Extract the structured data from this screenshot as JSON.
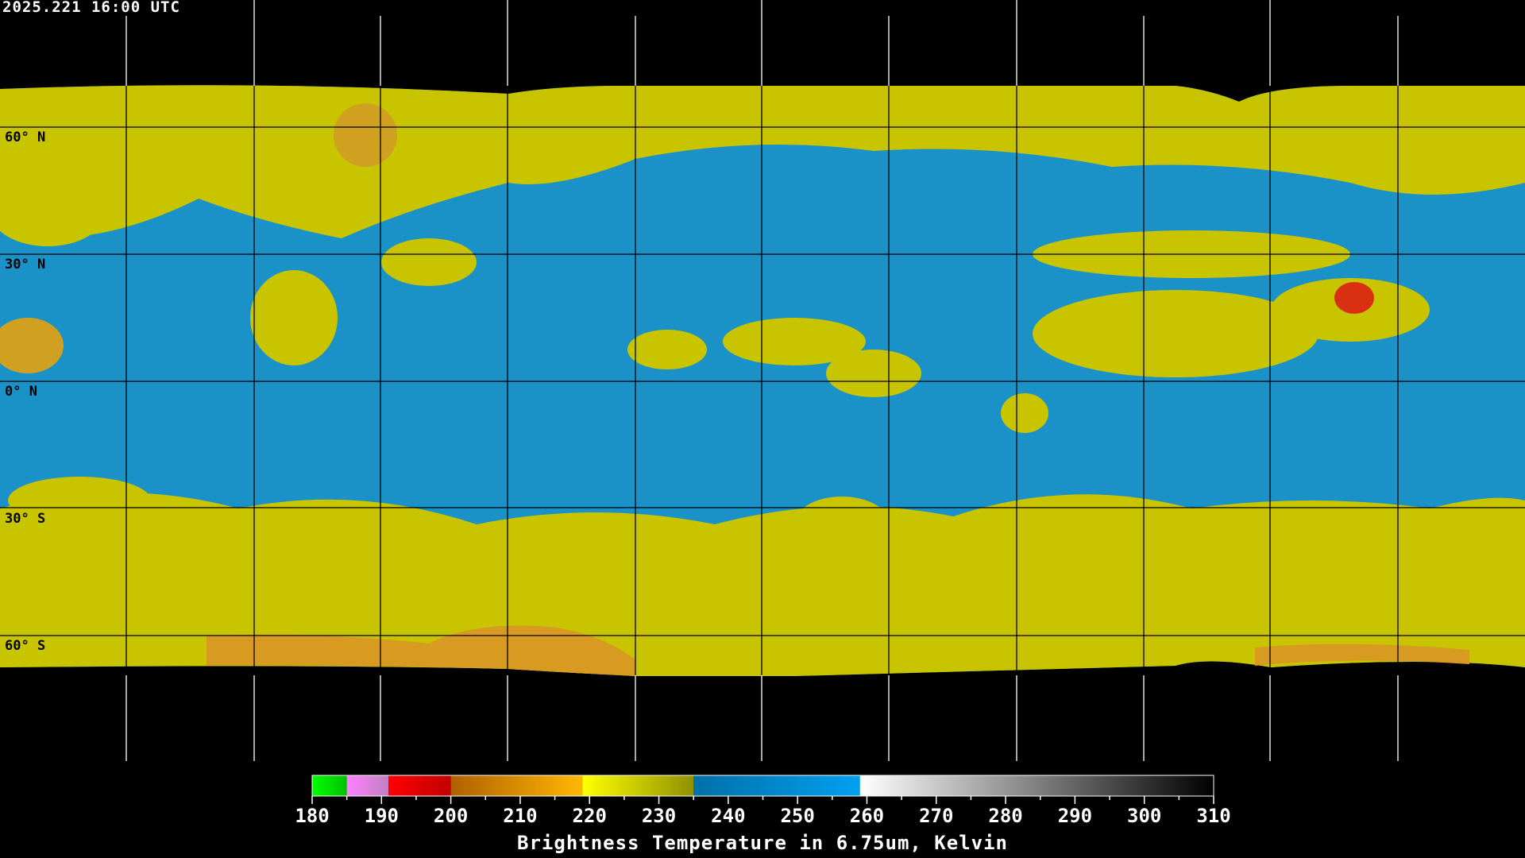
{
  "timestamp": "2025.221 16:00 UTC",
  "map": {
    "projection": "equirectangular",
    "latitude_labels": [
      "60° N",
      "30° N",
      "0° N",
      "30° S",
      "60° S"
    ],
    "colors": {
      "background": "#000000",
      "coastline_on_data": "#000000",
      "coastline_on_background": "#ffffff",
      "grid_on_data": "#000000",
      "grid_on_background": "#ffffff"
    }
  },
  "colorbar": {
    "title": "Brightness Temperature in 6.75um, Kelvin",
    "range": [
      180,
      310
    ],
    "tick_labels": [
      "180",
      "190",
      "200",
      "210",
      "220",
      "230",
      "240",
      "250",
      "260",
      "270",
      "280",
      "290",
      "300",
      "310"
    ],
    "segments": [
      {
        "from": 180,
        "to": 185,
        "colors": [
          "#00ff00",
          "#00c000"
        ]
      },
      {
        "from": 185,
        "to": 191,
        "colors": [
          "#ff80ff",
          "#c080c0"
        ]
      },
      {
        "from": 191,
        "to": 200,
        "colors": [
          "#ff0000",
          "#c00000"
        ]
      },
      {
        "from": 200,
        "to": 219,
        "colors": [
          "#b06000",
          "#ffb800"
        ]
      },
      {
        "from": 219,
        "to": 235,
        "colors": [
          "#ffff00",
          "#909000"
        ]
      },
      {
        "from": 235,
        "to": 259,
        "colors": [
          "#0070a8",
          "#00a0f0"
        ]
      },
      {
        "from": 259,
        "to": 310,
        "colors": [
          "#ffffff",
          "#000000"
        ]
      }
    ]
  }
}
